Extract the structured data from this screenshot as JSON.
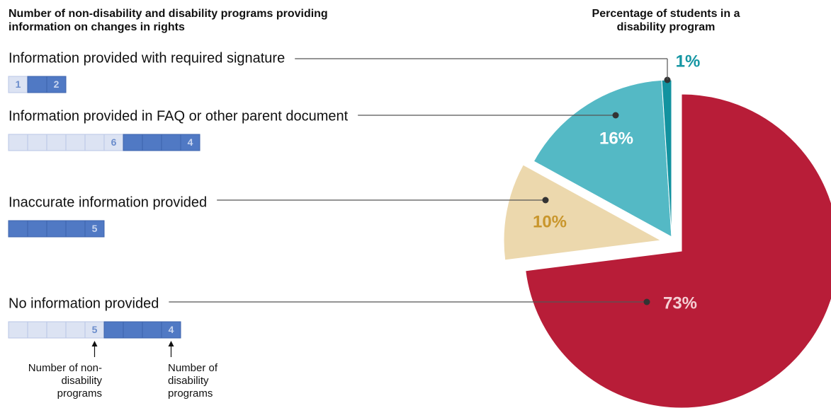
{
  "chart_data": [
    {
      "type": "unit-bar",
      "title": "Number of non-disability and disability programs providing information on changes in rights",
      "categories": [
        "Information provided with required signature",
        "Information provided in FAQ or other parent document",
        "Inaccurate information provided",
        "No information provided"
      ],
      "series": [
        {
          "name": "Number of non-disability programs",
          "color": "#dce3f3",
          "values": [
            1,
            6,
            0,
            5
          ]
        },
        {
          "name": "Number of disability programs",
          "color": "#5079c4",
          "values": [
            2,
            4,
            5,
            4
          ]
        }
      ]
    },
    {
      "type": "pie",
      "title": "Percentage of students in a disability program",
      "values": [
        1,
        16,
        10,
        73
      ],
      "value_labels": [
        "1%",
        "16%",
        "10%",
        "73%"
      ],
      "colors": [
        "#12929f",
        "#54b9c5",
        "#ecd8ad",
        "#b81d38"
      ]
    }
  ]
}
